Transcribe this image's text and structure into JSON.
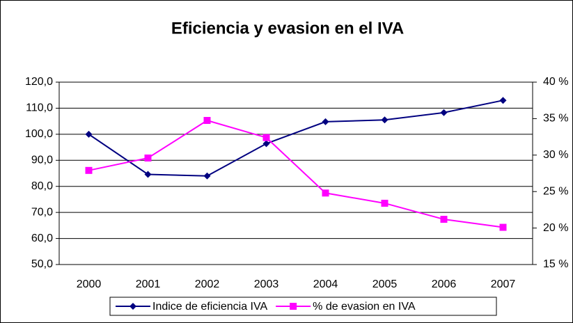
{
  "chart_data": {
    "type": "line",
    "title": "Eficiencia y evasion en el IVA",
    "categories": [
      "2000",
      "2001",
      "2002",
      "2003",
      "2004",
      "2005",
      "2006",
      "2007"
    ],
    "series": [
      {
        "name": "Indice de eficiencia IVA",
        "color": "#000080",
        "marker": "diamond",
        "values": [
          100.0,
          84.6,
          84.0,
          96.4,
          104.8,
          105.5,
          108.3,
          113.0
        ]
      },
      {
        "name": "% de evasion en IVA",
        "color": "#ff00ff",
        "marker": "square",
        "axis": "y2",
        "values": [
          27.9,
          29.6,
          34.75,
          32.4,
          24.8,
          23.4,
          21.2,
          20.1
        ]
      }
    ],
    "ylim": [
      50,
      120
    ],
    "yticks": [
      {
        "value": 50,
        "label": "50,0"
      },
      {
        "value": 60,
        "label": "60,0"
      },
      {
        "value": 70,
        "label": "70,0"
      },
      {
        "value": 80,
        "label": "80,0"
      },
      {
        "value": 90,
        "label": "90,0"
      },
      {
        "value": 100,
        "label": "100,0"
      },
      {
        "value": 110,
        "label": "110,0"
      },
      {
        "value": 120,
        "label": "120,0"
      }
    ],
    "y2lim": [
      15,
      40
    ],
    "y2ticks": [
      {
        "value": 15,
        "label": "15 %"
      },
      {
        "value": 20,
        "label": "20 %"
      },
      {
        "value": 25,
        "label": "25 %"
      },
      {
        "value": 30,
        "label": "30 %"
      },
      {
        "value": 35,
        "label": "35 %"
      },
      {
        "value": 40,
        "label": "40 %"
      }
    ],
    "grid": true,
    "legend": "bottom"
  }
}
